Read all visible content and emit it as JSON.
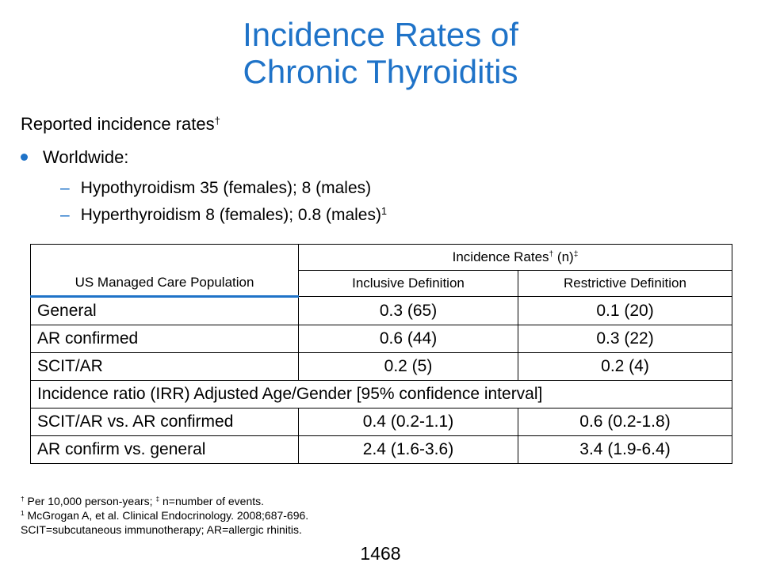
{
  "title": {
    "line1": "Incidence Rates of",
    "line2": "Chronic Thyroiditis"
  },
  "intro": {
    "text": "Reported incidence rates",
    "mark": "†"
  },
  "bullet": {
    "text": "Worldwide:"
  },
  "subitems": [
    {
      "text": "Hypothyroidism 35 (females); 8 (males)",
      "mark": ""
    },
    {
      "text": "Hyperthyroidism 8 (females); 0.8 (males)",
      "mark": "1"
    }
  ],
  "table": {
    "group_header": {
      "prefix": "Incidence Rates",
      "mark1": "†",
      "middle": " (n)",
      "mark2": "‡"
    },
    "population_header": "US Managed Care Population",
    "col_inclusive": "Inclusive Definition",
    "col_restrictive": "Restrictive Definition",
    "rows": [
      {
        "label": "General",
        "inclusive": "0.3 (65)",
        "restrictive": "0.1 (20)"
      },
      {
        "label": "AR confirmed",
        "inclusive": "0.6 (44)",
        "restrictive": "0.3 (22)"
      },
      {
        "label": "SCIT/AR",
        "inclusive": "0.2 (5)",
        "restrictive": "0.2 (4)"
      }
    ],
    "ratio_header": "Incidence ratio (IRR) Adjusted Age/Gender [95% confidence interval]",
    "ratio_rows": [
      {
        "label": "SCIT/AR vs. AR confirmed",
        "inclusive": "0.4 (0.2-1.1)",
        "restrictive": "0.6 (0.2-1.8)"
      },
      {
        "label": "AR confirm vs. general",
        "inclusive": "2.4 (1.6-3.6)",
        "restrictive": "3.4 (1.9-6.4)"
      }
    ]
  },
  "footnotes": {
    "line1": {
      "mark1": "†",
      "text1": " Per 10,000 person-years; ",
      "mark2": "‡",
      "text2": " n=number of events."
    },
    "line2": {
      "mark": "1",
      "text": " McGrogan A, et al. Clinical Endocrinology. 2008;687-696."
    },
    "line3": "SCIT=subcutaneous immunotherapy; AR=allergic rhinitis."
  },
  "page_number": "1468",
  "colors": {
    "accent": "#1f73c8"
  }
}
